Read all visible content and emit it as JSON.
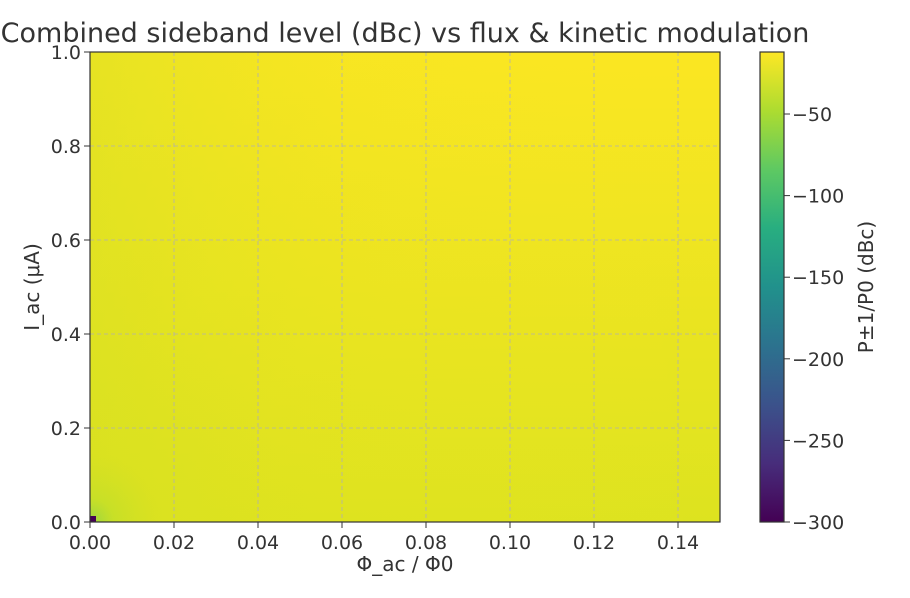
{
  "chart_data": {
    "type": "heatmap",
    "title": "Combined sideband level (dBc) vs flux & kinetic modulation",
    "xlabel": "Φ_ac / Φ0",
    "ylabel": "I_ac (μA)",
    "xlim": [
      0,
      0.15
    ],
    "ylim": [
      0,
      1.0
    ],
    "x_ticks": [
      "0.00",
      "0.02",
      "0.04",
      "0.06",
      "0.08",
      "0.10",
      "0.12",
      "0.14"
    ],
    "y_ticks": [
      "0.0",
      "0.2",
      "0.4",
      "0.6",
      "0.8",
      "1.0"
    ],
    "grid": true,
    "colormap": "viridis",
    "colorbar": {
      "label": "P±1/P0 (dBc)",
      "range": [
        -300,
        -12
      ],
      "ticks": [
        "−50",
        "−100",
        "−150",
        "−200",
        "−250",
        "−300"
      ]
    },
    "z_summary": {
      "max_approx": -12,
      "min_at_origin": -300,
      "near_origin_approx": -40,
      "typical": -15
    },
    "colors": {
      "high": "#fde725",
      "low": "#440154",
      "grid": "#b0b0b0"
    }
  }
}
